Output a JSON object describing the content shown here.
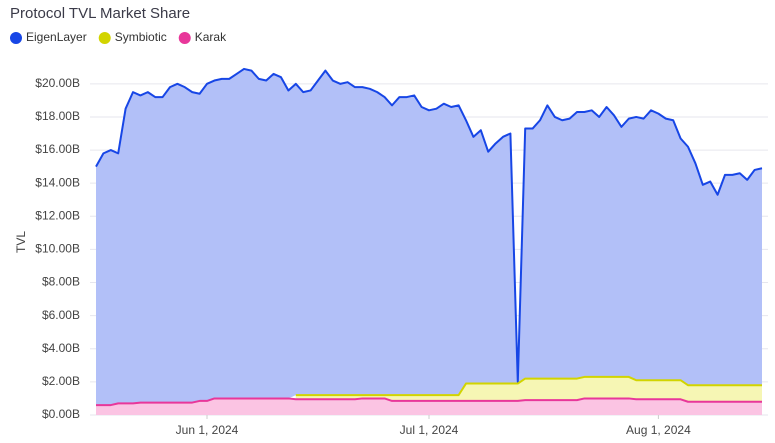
{
  "chart_data": {
    "type": "stacked-area",
    "title": "Protocol TVL Market Share",
    "y_label": "TVL",
    "x": [
      "2024-05-17",
      "2024-05-18",
      "2024-05-19",
      "2024-05-20",
      "2024-05-21",
      "2024-05-22",
      "2024-05-23",
      "2024-05-24",
      "2024-05-25",
      "2024-05-26",
      "2024-05-27",
      "2024-05-28",
      "2024-05-29",
      "2024-05-30",
      "2024-05-31",
      "2024-06-01",
      "2024-06-02",
      "2024-06-03",
      "2024-06-04",
      "2024-06-05",
      "2024-06-06",
      "2024-06-07",
      "2024-06-08",
      "2024-06-09",
      "2024-06-10",
      "2024-06-11",
      "2024-06-12",
      "2024-06-13",
      "2024-06-14",
      "2024-06-15",
      "2024-06-16",
      "2024-06-17",
      "2024-06-18",
      "2024-06-19",
      "2024-06-20",
      "2024-06-21",
      "2024-06-22",
      "2024-06-23",
      "2024-06-24",
      "2024-06-25",
      "2024-06-26",
      "2024-06-27",
      "2024-06-28",
      "2024-06-29",
      "2024-06-30",
      "2024-07-01",
      "2024-07-02",
      "2024-07-03",
      "2024-07-04",
      "2024-07-05",
      "2024-07-06",
      "2024-07-07",
      "2024-07-08",
      "2024-07-09",
      "2024-07-10",
      "2024-07-11",
      "2024-07-12",
      "2024-07-13",
      "2024-07-14",
      "2024-07-15",
      "2024-07-16",
      "2024-07-17",
      "2024-07-18",
      "2024-07-19",
      "2024-07-20",
      "2024-07-21",
      "2024-07-22",
      "2024-07-23",
      "2024-07-24",
      "2024-07-25",
      "2024-07-26",
      "2024-07-27",
      "2024-07-28",
      "2024-07-29",
      "2024-07-30",
      "2024-07-31",
      "2024-08-01",
      "2024-08-02",
      "2024-08-03",
      "2024-08-04",
      "2024-08-05",
      "2024-08-06",
      "2024-08-07",
      "2024-08-08",
      "2024-08-09",
      "2024-08-10",
      "2024-08-11",
      "2024-08-12",
      "2024-08-13",
      "2024-08-14",
      "2024-08-15"
    ],
    "xlim": [
      "2024-05-17",
      "2024-08-15"
    ],
    "xticks": [
      {
        "value": "2024-06-01",
        "label": "Jun 1, 2024"
      },
      {
        "value": "2024-07-01",
        "label": "Jul 1, 2024"
      },
      {
        "value": "2024-08-01",
        "label": "Aug 1, 2024"
      }
    ],
    "ylim": [
      0,
      21.5
    ],
    "yticks": [
      {
        "value": 0,
        "label": "$0.00B"
      },
      {
        "value": 2,
        "label": "$2.00B"
      },
      {
        "value": 4,
        "label": "$4.00B"
      },
      {
        "value": 6,
        "label": "$6.00B"
      },
      {
        "value": 8,
        "label": "$8.00B"
      },
      {
        "value": 10,
        "label": "$10.00B"
      },
      {
        "value": 12,
        "label": "$12.00B"
      },
      {
        "value": 14,
        "label": "$14.00B"
      },
      {
        "value": 16,
        "label": "$16.00B"
      },
      {
        "value": 18,
        "label": "$18.00B"
      },
      {
        "value": 20,
        "label": "$20.00B"
      }
    ],
    "grid": true,
    "series": [
      {
        "name": "EigenLayer",
        "color": "#1746e6",
        "fill": "#b2c0f8",
        "values": [
          14.4,
          15.2,
          15.4,
          15.1,
          17.8,
          18.8,
          18.55,
          18.75,
          18.45,
          18.45,
          19.05,
          19.25,
          19.05,
          18.75,
          18.55,
          19.15,
          19.2,
          19.3,
          19.3,
          19.6,
          19.9,
          19.8,
          19.3,
          19.2,
          19.6,
          19.4,
          18.6,
          18.8,
          18.3,
          18.4,
          19.0,
          19.6,
          19.0,
          18.8,
          18.9,
          18.6,
          18.6,
          18.5,
          18.3,
          18.0,
          17.5,
          18.0,
          18.0,
          18.1,
          17.4,
          17.2,
          17.3,
          17.6,
          17.4,
          17.5,
          15.9,
          14.9,
          15.3,
          14.0,
          14.5,
          14.9,
          15.1,
          0.1,
          15.1,
          15.1,
          15.6,
          16.5,
          15.8,
          15.6,
          15.7,
          16.1,
          16.0,
          16.1,
          15.7,
          16.3,
          15.8,
          15.1,
          15.6,
          15.9,
          15.8,
          16.3,
          16.1,
          15.8,
          15.7,
          14.6,
          14.4,
          13.4,
          12.1,
          12.3,
          11.5,
          12.7,
          12.7,
          12.8,
          12.4,
          13.0,
          13.1
        ]
      },
      {
        "name": "Symbiotic",
        "color": "#d2d400",
        "fill": "#f6f6b4",
        "values": [
          null,
          null,
          null,
          null,
          null,
          null,
          null,
          null,
          null,
          null,
          null,
          null,
          null,
          null,
          null,
          null,
          null,
          null,
          null,
          null,
          null,
          null,
          null,
          null,
          null,
          null,
          null,
          0.25,
          0.25,
          0.25,
          0.25,
          0.25,
          0.25,
          0.25,
          0.25,
          0.25,
          0.2,
          0.2,
          0.2,
          0.2,
          0.35,
          0.35,
          0.35,
          0.35,
          0.35,
          0.35,
          0.35,
          0.35,
          0.35,
          0.35,
          1.05,
          1.05,
          1.05,
          1.05,
          1.05,
          1.05,
          1.05,
          1.05,
          1.3,
          1.3,
          1.3,
          1.3,
          1.3,
          1.3,
          1.3,
          1.3,
          1.3,
          1.3,
          1.3,
          1.3,
          1.3,
          1.3,
          1.3,
          1.15,
          1.15,
          1.15,
          1.15,
          1.15,
          1.15,
          1.15,
          1.0,
          1.0,
          1.0,
          1.0,
          1.0,
          1.0,
          1.0,
          1.0,
          1.0,
          1.0,
          1.0
        ]
      },
      {
        "name": "Karak",
        "color": "#e8379a",
        "fill": "#fbc4e3",
        "values": [
          0.6,
          0.6,
          0.6,
          0.7,
          0.7,
          0.7,
          0.75,
          0.75,
          0.75,
          0.75,
          0.75,
          0.75,
          0.75,
          0.75,
          0.85,
          0.85,
          1.0,
          1.0,
          1.0,
          1.0,
          1.0,
          1.0,
          1.0,
          1.0,
          1.0,
          1.0,
          1.0,
          0.95,
          0.95,
          0.95,
          0.95,
          0.95,
          0.95,
          0.95,
          0.95,
          0.95,
          1.0,
          1.0,
          1.0,
          1.0,
          0.85,
          0.85,
          0.85,
          0.85,
          0.85,
          0.85,
          0.85,
          0.85,
          0.85,
          0.85,
          0.85,
          0.85,
          0.85,
          0.85,
          0.85,
          0.85,
          0.85,
          0.85,
          0.9,
          0.9,
          0.9,
          0.9,
          0.9,
          0.9,
          0.9,
          0.9,
          1.0,
          1.0,
          1.0,
          1.0,
          1.0,
          1.0,
          1.0,
          0.95,
          0.95,
          0.95,
          0.95,
          0.95,
          0.95,
          0.95,
          0.8,
          0.8,
          0.8,
          0.8,
          0.8,
          0.8,
          0.8,
          0.8,
          0.8,
          0.8,
          0.8
        ]
      }
    ]
  }
}
